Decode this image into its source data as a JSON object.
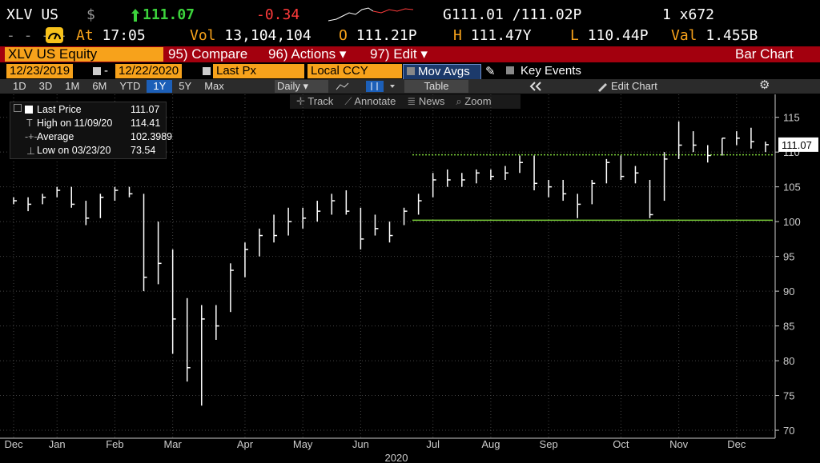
{
  "header": {
    "ticker": "XLV US",
    "currency": "$",
    "last": "111.07",
    "change": "-0.34",
    "bid_ask": "G111.01 /111.02P",
    "size": "1 x672",
    "at_label": "At",
    "at_time": "17:05",
    "vol_label": "Vol",
    "vol": "13,104,104",
    "open_label": "O",
    "open": "111.21P",
    "high_label": "H",
    "high": "111.47Y",
    "low_label": "L",
    "low": "110.44P",
    "val_label": "Val",
    "val": "1.455B"
  },
  "toolbar": {
    "security": "XLV US Equity",
    "compare": "95) Compare",
    "actions": "96) Actions",
    "edit": "97) Edit",
    "view": "Bar Chart",
    "start_date": "12/23/2019",
    "date_sep": "-",
    "end_date": "12/22/2020",
    "field": "Last Px",
    "currency": "Local CCY",
    "mov_avgs": "Mov Avgs",
    "key_events": "Key Events",
    "periods": [
      "1D",
      "3D",
      "1M",
      "6M",
      "YTD",
      "1Y",
      "5Y",
      "Max"
    ],
    "frequency": "Daily",
    "table": "Table",
    "edit_chart": "Edit Chart",
    "tools": [
      "Track",
      "Annotate",
      "News",
      "Zoom"
    ]
  },
  "chart_data": {
    "type": "ohlc",
    "categories": [
      "Dec",
      null,
      null,
      "Jan",
      null,
      null,
      null,
      "Feb",
      null,
      null,
      null,
      "Mar",
      null,
      null,
      null,
      null,
      "Apr",
      null,
      null,
      null,
      "May",
      null,
      null,
      null,
      "Jun",
      null,
      null,
      null,
      null,
      "Jul",
      null,
      null,
      null,
      "Aug",
      null,
      null,
      null,
      "Sep",
      null,
      null,
      null,
      null,
      "Oct",
      null,
      null,
      null,
      "Nov",
      null,
      null,
      null,
      "Dec",
      null,
      null
    ],
    "high": [
      103.5,
      103.5,
      104,
      105,
      105,
      103,
      104,
      105,
      105,
      104,
      100,
      96,
      89,
      88,
      88,
      94,
      97,
      99,
      101,
      102,
      102,
      103,
      104,
      104.5,
      102,
      101,
      100,
      102,
      104,
      107,
      107.5,
      107,
      107.5,
      107.5,
      108,
      109.5,
      109.5,
      106,
      106,
      104,
      106,
      109,
      109.5,
      108,
      106,
      110,
      114.41,
      113,
      111,
      112,
      113,
      113.5,
      111.5
    ],
    "low": [
      102.5,
      101.5,
      102.5,
      103.5,
      102,
      99.5,
      100.5,
      103,
      103.5,
      90,
      91,
      81,
      77,
      73.54,
      83,
      87,
      92,
      95,
      97,
      98,
      99,
      100,
      101,
      101,
      96,
      98,
      97,
      99.5,
      101,
      103.5,
      105,
      105,
      105.5,
      106,
      106,
      107,
      104.5,
      103.5,
      103,
      100.5,
      102.5,
      105.5,
      106,
      105.5,
      100.5,
      103,
      109,
      110,
      108.5,
      109.5,
      111,
      110.5,
      110
    ],
    "close": [
      103,
      102.5,
      103.5,
      104.5,
      102.5,
      100.5,
      103.5,
      104.5,
      104,
      92,
      94,
      86,
      79,
      86,
      85,
      93,
      96,
      98,
      98,
      100,
      100.5,
      101.5,
      103,
      101.5,
      97.5,
      99,
      98,
      101.5,
      103,
      106,
      106,
      106,
      107,
      106.5,
      107,
      108.5,
      105.5,
      105,
      104,
      102.5,
      105.5,
      108.5,
      106.5,
      107,
      101,
      109,
      111,
      111,
      109.5,
      112,
      112,
      111.5,
      111.07
    ],
    "color": "#ffffff",
    "ylim": [
      69.2,
      118.3
    ],
    "yticks": [
      70,
      75,
      80,
      85,
      90,
      95,
      100,
      105,
      110,
      115
    ],
    "grid": true,
    "x_group_label": "2020",
    "levels": [
      {
        "value": 109.6,
        "color": "#7cd13a",
        "style": "dotted"
      },
      {
        "value": 100.2,
        "color": "#7cd13a",
        "style": "solid"
      }
    ],
    "legend": {
      "last_label": "Last Price",
      "last": 111.07,
      "high_label": "High on 11/09/20",
      "high": 114.41,
      "avg_label": "Average",
      "avg": 102.3989,
      "low_label": "Low on 03/23/20",
      "low": 73.54
    }
  }
}
